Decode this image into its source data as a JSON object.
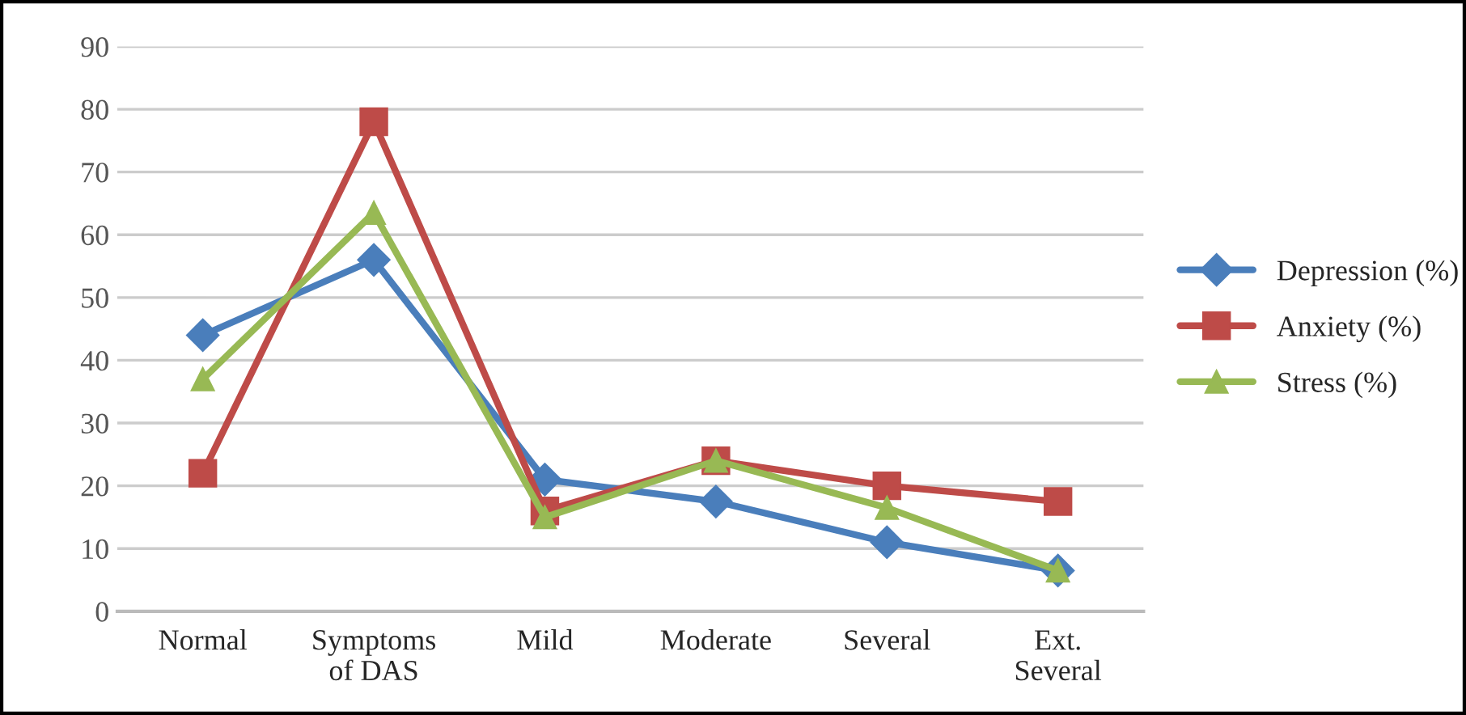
{
  "chart_data": {
    "type": "line",
    "categories": [
      "Normal",
      "Symptoms\nof DAS",
      "Mild",
      "Moderate",
      "Several",
      "Ext.\nSeveral"
    ],
    "series": [
      {
        "name": "Depression (%)",
        "color": "#4a7ebb",
        "marker": "diamond",
        "values": [
          44,
          56,
          21,
          17.5,
          11,
          6.5
        ]
      },
      {
        "name": "Anxiety (%)",
        "color": "#be4b48",
        "marker": "square",
        "values": [
          22,
          78,
          16,
          24,
          20,
          17.5
        ]
      },
      {
        "name": "Stress (%)",
        "color": "#98b954",
        "marker": "triangle",
        "values": [
          37,
          63.5,
          15,
          24,
          16.5,
          6.5
        ]
      }
    ],
    "ylim": [
      0,
      90
    ],
    "yticks": [
      0,
      10,
      20,
      30,
      40,
      50,
      60,
      70,
      80,
      90
    ],
    "grid": "y",
    "legend": "right",
    "line_style": "solid"
  }
}
